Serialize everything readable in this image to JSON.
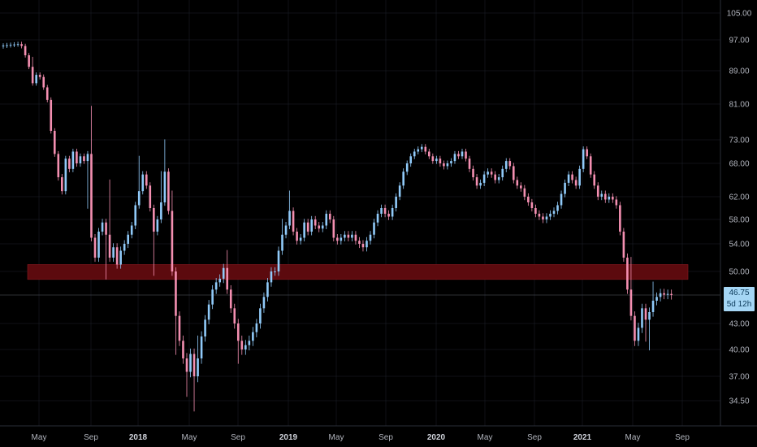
{
  "chart_data": {
    "type": "candlestick",
    "interval": "weekly",
    "y_ticks": [
      "105.00",
      "97.00",
      "89.00",
      "81.00",
      "73.00",
      "68.00",
      "62.00",
      "58.00",
      "54.00",
      "50.00",
      "46.75",
      "43.00",
      "40.00",
      "37.00",
      "34.50"
    ],
    "x_ticks": [
      {
        "label": "May",
        "year": false
      },
      {
        "label": "Sep",
        "year": false
      },
      {
        "label": "2018",
        "year": true
      },
      {
        "label": "May",
        "year": false
      },
      {
        "label": "Sep",
        "year": false
      },
      {
        "label": "2019",
        "year": true
      },
      {
        "label": "May",
        "year": false
      },
      {
        "label": "Sep",
        "year": false
      },
      {
        "label": "2020",
        "year": true
      },
      {
        "label": "May",
        "year": false
      },
      {
        "label": "Sep",
        "year": false
      },
      {
        "label": "2021",
        "year": true
      },
      {
        "label": "May",
        "year": false
      },
      {
        "label": "Sep",
        "year": false
      }
    ],
    "last_price": "46.75",
    "countdown": "5d 12h",
    "zone": {
      "low": 48.9,
      "high": 51.0,
      "color": "#5c0a0e"
    },
    "colors": {
      "up": "#90caf9",
      "down": "#f48fb1",
      "background": "#000000",
      "grid": "#1e222d"
    },
    "closes": [
      95.5,
      95.6,
      95.7,
      95.8,
      95.9,
      95.4,
      93.0,
      90.0,
      86.0,
      88.0,
      87.5,
      85.0,
      82.0,
      75.0,
      70.0,
      65.5,
      63.0,
      69.0,
      67.0,
      70.5,
      68.0,
      69.5,
      68.5,
      70.0,
      55.0,
      52.0,
      56.0,
      57.5,
      55.5,
      52.0,
      53.5,
      51.0,
      53.0,
      54.0,
      55.5,
      57.0,
      60.5,
      63.0,
      66.0,
      64.0,
      60.0,
      56.0,
      58.0,
      61.0,
      66.5,
      59.5,
      50.0,
      44.0,
      41.0,
      39.0,
      37.5,
      39.5,
      37.0,
      39.0,
      41.5,
      43.5,
      45.5,
      47.5,
      48.5,
      49.0,
      50.5,
      47.5,
      45.0,
      43.0,
      41.0,
      40.0,
      40.5,
      41.0,
      42.0,
      43.0,
      45.0,
      46.5,
      48.5,
      50.0,
      50.0,
      53.0,
      55.5,
      57.0,
      59.5,
      56.0,
      54.5,
      55.0,
      57.5,
      56.0,
      58.0,
      57.0,
      56.5,
      57.0,
      59.0,
      58.0,
      55.0,
      54.5,
      55.0,
      55.5,
      55.0,
      55.5,
      54.5,
      54.0,
      53.5,
      54.5,
      55.5,
      57.5,
      59.0,
      60.0,
      59.0,
      58.5,
      60.0,
      62.0,
      64.0,
      66.5,
      68.0,
      69.5,
      70.5,
      71.0,
      71.5,
      70.5,
      69.5,
      68.5,
      69.0,
      68.0,
      67.5,
      68.0,
      68.5,
      70.0,
      69.5,
      70.5,
      69.0,
      67.0,
      65.5,
      64.0,
      64.5,
      66.0,
      66.5,
      66.0,
      65.0,
      65.5,
      67.0,
      68.5,
      67.5,
      65.0,
      64.0,
      63.5,
      62.0,
      61.0,
      60.0,
      59.0,
      58.5,
      58.0,
      58.5,
      59.0,
      59.5,
      60.5,
      62.5,
      64.5,
      66.0,
      65.0,
      64.0,
      67.0,
      71.0,
      69.5,
      66.0,
      64.0,
      62.0,
      62.5,
      61.5,
      62.0,
      61.5,
      60.5,
      56.0,
      52.0,
      47.5,
      44.0,
      41.0,
      42.5,
      45.0,
      43.5,
      44.5,
      46.0,
      46.5,
      47.0,
      46.8,
      46.9,
      46.75
    ],
    "highs_extra": [
      [
        8,
        2
      ],
      [
        24,
        10
      ],
      [
        29,
        9
      ],
      [
        37,
        6
      ],
      [
        43,
        5
      ],
      [
        44,
        6
      ],
      [
        46,
        3
      ],
      [
        53,
        2
      ],
      [
        61,
        2
      ],
      [
        76,
        2
      ],
      [
        78,
        3
      ],
      [
        171,
        4
      ],
      [
        177,
        2
      ]
    ],
    "lows_extra": [
      [
        23,
        8
      ],
      [
        28,
        6
      ],
      [
        41,
        6
      ],
      [
        47,
        4
      ],
      [
        50,
        2
      ],
      [
        52,
        3
      ],
      [
        64,
        2
      ],
      [
        175,
        2
      ],
      [
        176,
        3
      ]
    ]
  }
}
